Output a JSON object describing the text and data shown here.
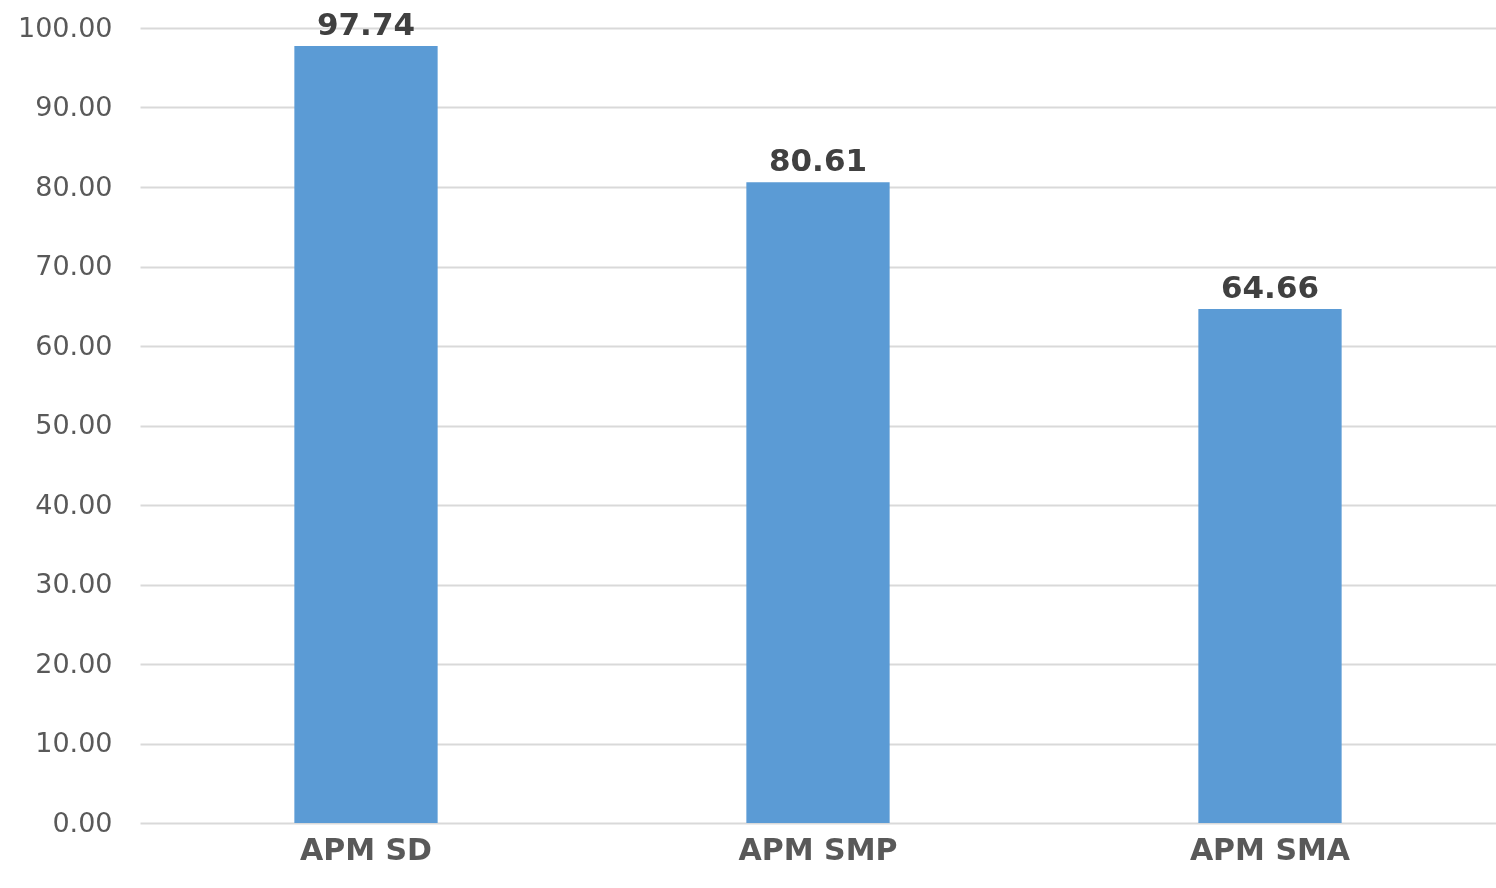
{
  "chart_data": {
    "type": "bar",
    "categories": [
      "APM SD",
      "APM SMP",
      "APM SMA"
    ],
    "values": [
      97.74,
      80.61,
      64.66
    ],
    "color": "#5b9bd5",
    "ylim": [
      0,
      100
    ],
    "yticks": [
      {
        "value": 0,
        "label": "0.00"
      },
      {
        "value": 10,
        "label": "10.00"
      },
      {
        "value": 20,
        "label": "20.00"
      },
      {
        "value": 30,
        "label": "30.00"
      },
      {
        "value": 40,
        "label": "40.00"
      },
      {
        "value": 50,
        "label": "50.00"
      },
      {
        "value": 60,
        "label": "60.00"
      },
      {
        "value": 70,
        "label": "70.00"
      },
      {
        "value": 80,
        "label": "80.00"
      },
      {
        "value": 90,
        "label": "90.00"
      },
      {
        "value": 100,
        "label": "100.00"
      }
    ],
    "grid": "y",
    "data_labels": true
  }
}
